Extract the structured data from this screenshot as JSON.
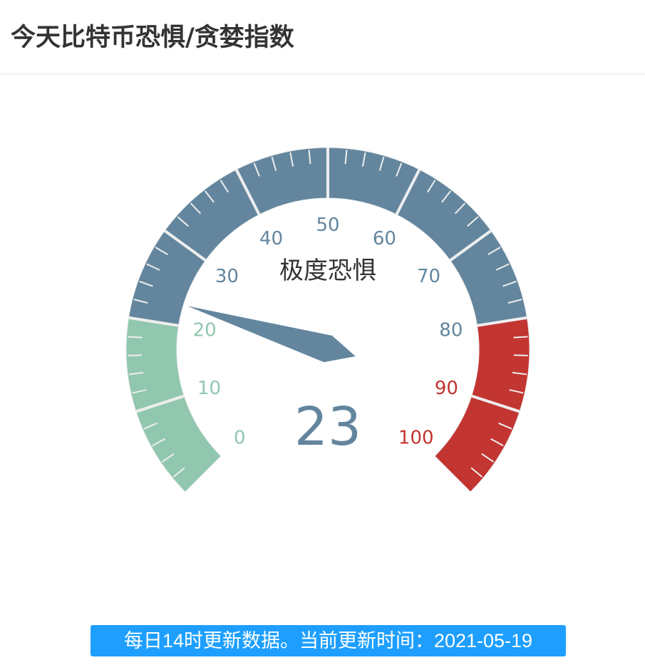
{
  "header": {
    "title": "今天比特币恐惧/贪婪指数"
  },
  "chart_data": {
    "type": "gauge",
    "min": 0,
    "max": 100,
    "value": 23,
    "detail_label": "极度恐惧",
    "tick_labels": [
      "0",
      "10",
      "20",
      "30",
      "40",
      "50",
      "60",
      "70",
      "80",
      "90",
      "100"
    ],
    "bands": [
      {
        "to": 0.2,
        "color": "#91c7ae"
      },
      {
        "to": 0.8,
        "color": "#63869e"
      },
      {
        "to": 1.0,
        "color": "#c23531"
      }
    ],
    "start_angle": 225,
    "end_angle": -45
  },
  "footer": {
    "text": "每日14时更新数据。当前更新时间：2021-05-19"
  }
}
